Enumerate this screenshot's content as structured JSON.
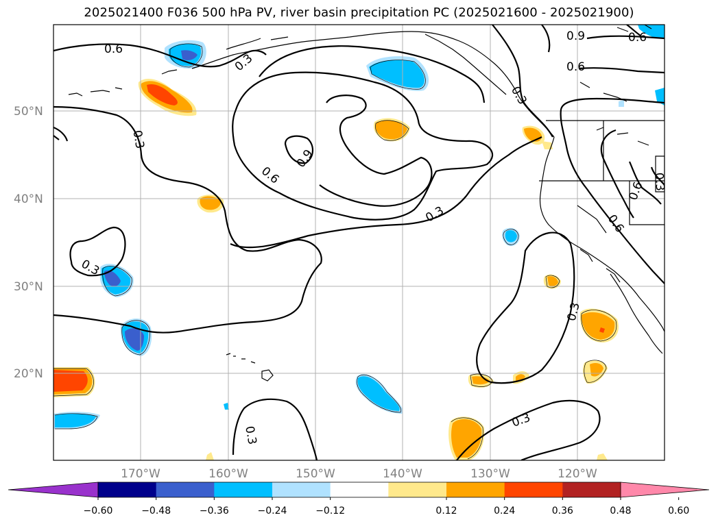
{
  "title": "2025021400 F036 500 hPa PV, river basin precipitation PC (2025021600 - 2025021900)",
  "map": {
    "latitude_labels": [
      "50°N",
      "40°N",
      "30°N",
      "20°N"
    ],
    "longitude_labels": [
      "170°W",
      "160°W",
      "150°W",
      "140°W",
      "130°W",
      "120°W"
    ],
    "contour_labels": [
      "0.6",
      "0.3",
      "0.3",
      "0.6",
      "0.9",
      "0.3",
      "0.3",
      "0.3",
      "0.3",
      "0.3",
      "0.3",
      "0.6",
      "0.6",
      "0.6",
      "0.9",
      "0.6",
      "0.3"
    ],
    "shading_colors": {
      "neg_strong": "#3a5fcd",
      "neg_mid": "#00bfff",
      "neg_weak": "#b0e2ff",
      "pos_weak": "#ffe98c",
      "pos_mid": "#ffa500",
      "pos_strong": "#ff4500"
    }
  },
  "colorbar": {
    "ticks": [
      "−0.60",
      "−0.48",
      "−0.36",
      "−0.24",
      "−0.12",
      "0.12",
      "0.24",
      "0.36",
      "0.48",
      "0.60"
    ],
    "colors": [
      "#9932cc",
      "#00008b",
      "#3a5fcd",
      "#00bfff",
      "#b0e2ff",
      "#ffffff",
      "#ffe98c",
      "#ffa500",
      "#ff4500",
      "#b22222",
      "#ff88aa",
      "#ff88aa"
    ],
    "under_color": "#9932cc",
    "over_color": "#ff88aa"
  }
}
